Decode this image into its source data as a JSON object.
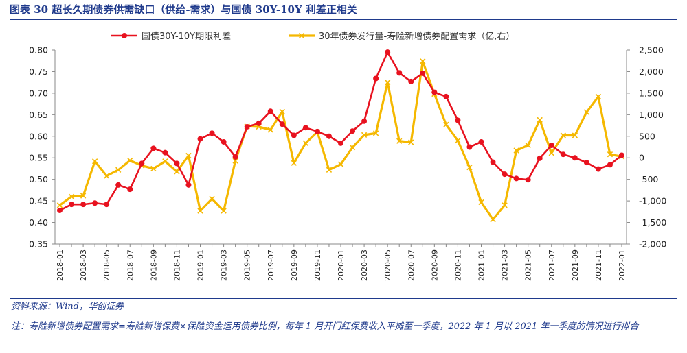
{
  "header": {
    "title": "图表 30  超长久期债券供需缺口（供给-需求）与国债 30Y-10Y 利差正相关"
  },
  "footer": {
    "source": "资料来源：Wind，华创证券",
    "note": "注：寿险新增债券配置需求=寿险新增保费×保险资金运用债券比例，每年 1 月开门红保费收入平摊至一季度，2022 年 1 月以 2021 年一季度的情况进行拟合"
  },
  "colors": {
    "spread": "#e8121f",
    "gap": "#f5b800",
    "axis": "#888888",
    "title": "#1f3a8c"
  },
  "chart_data": {
    "type": "line",
    "x": [
      "2018-01",
      "2018-02",
      "2018-03",
      "2018-04",
      "2018-05",
      "2018-06",
      "2018-07",
      "2018-08",
      "2018-09",
      "2018-10",
      "2018-11",
      "2018-12",
      "2019-01",
      "2019-02",
      "2019-03",
      "2019-04",
      "2019-05",
      "2019-06",
      "2019-07",
      "2019-08",
      "2019-09",
      "2019-10",
      "2019-11",
      "2019-12",
      "2020-01",
      "2020-02",
      "2020-03",
      "2020-04",
      "2020-05",
      "2020-06",
      "2020-07",
      "2020-08",
      "2020-09",
      "2020-10",
      "2020-11",
      "2020-12",
      "2021-01",
      "2021-02",
      "2021-03",
      "2021-04",
      "2021-05",
      "2021-06",
      "2021-07",
      "2021-08",
      "2021-09",
      "2021-10",
      "2021-11",
      "2021-12",
      "2022-01"
    ],
    "x_tick_labels": [
      "2018-01",
      "2018-03",
      "2018-05",
      "2018-07",
      "2018-09",
      "2018-11",
      "2019-01",
      "2019-03",
      "2019-05",
      "2019-07",
      "2019-09",
      "2019-11",
      "2020-01",
      "2020-03",
      "2020-05",
      "2020-07",
      "2020-09",
      "2020-11",
      "2021-01",
      "2021-03",
      "2021-05",
      "2021-07",
      "2021-09",
      "2021-11",
      "2022-01"
    ],
    "y_left": {
      "min": 0.35,
      "max": 0.8,
      "ticks": [
        "0.35",
        "0.40",
        "0.45",
        "0.50",
        "0.55",
        "0.60",
        "0.65",
        "0.70",
        "0.75",
        "0.80"
      ]
    },
    "y_right": {
      "min": -2000,
      "max": 2500,
      "ticks": [
        "-2,000",
        "-1,500",
        "-1,000",
        "-500",
        "0",
        "500",
        "1,000",
        "1,500",
        "2,000",
        "2,500"
      ]
    },
    "grid": false,
    "legend_position": "top",
    "series": [
      {
        "name": "国债30Y-10Y期限利差",
        "axis": "left",
        "marker": "circle",
        "values": [
          0.428,
          0.442,
          0.442,
          0.445,
          0.442,
          0.487,
          0.477,
          0.537,
          0.572,
          0.562,
          0.537,
          0.487,
          0.594,
          0.607,
          0.587,
          0.552,
          0.622,
          0.63,
          0.658,
          0.628,
          0.602,
          0.62,
          0.611,
          0.6,
          0.584,
          0.612,
          0.635,
          0.734,
          0.795,
          0.747,
          0.727,
          0.746,
          0.702,
          0.692,
          0.637,
          0.575,
          0.587,
          0.54,
          0.512,
          0.502,
          0.499,
          0.549,
          0.579,
          0.558,
          0.55,
          0.539,
          0.524,
          0.534,
          0.556
        ]
      },
      {
        "name": "30年债券发行量-寿险新增债券配置需求（亿,右）",
        "axis": "right",
        "marker": "x",
        "values": [
          -1100,
          -900,
          -880,
          -80,
          -420,
          -280,
          -60,
          -180,
          -250,
          -80,
          -320,
          50,
          -1230,
          -950,
          -1230,
          -70,
          730,
          720,
          650,
          1070,
          -120,
          340,
          600,
          -280,
          -150,
          240,
          530,
          570,
          1750,
          390,
          360,
          2240,
          1480,
          770,
          400,
          -220,
          -1030,
          -1430,
          -1100,
          170,
          290,
          880,
          110,
          520,
          520,
          1060,
          1420,
          80,
          30
        ]
      }
    ]
  }
}
